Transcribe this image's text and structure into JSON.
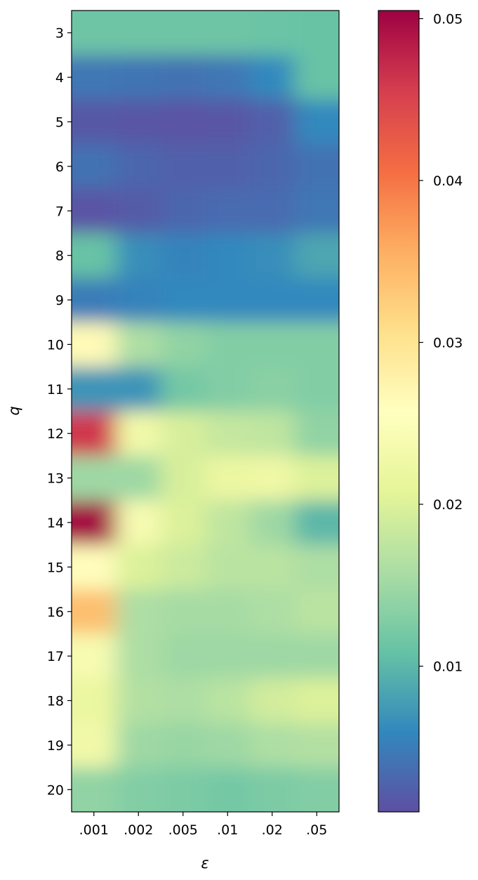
{
  "chart_data": {
    "type": "heatmap",
    "title": "",
    "xlabel": "ε",
    "ylabel": "q",
    "x_categories": [
      ".001",
      ".002",
      ".005",
      ".01",
      ".02",
      ".05"
    ],
    "y_categories": [
      "3",
      "4",
      "5",
      "6",
      "7",
      "8",
      "9",
      "10",
      "11",
      "12",
      "13",
      "14",
      "15",
      "16",
      "17",
      "18",
      "19",
      "20"
    ],
    "z": [
      [
        0.0115,
        0.0115,
        0.0115,
        0.0115,
        0.0112,
        0.011
      ],
      [
        0.0045,
        0.0043,
        0.004,
        0.0045,
        0.006,
        0.011
      ],
      [
        0.0018,
        0.0016,
        0.0014,
        0.0016,
        0.0025,
        0.006
      ],
      [
        0.004,
        0.003,
        0.0025,
        0.0025,
        0.003,
        0.004
      ],
      [
        0.0015,
        0.002,
        0.003,
        0.0035,
        0.0035,
        0.0045
      ],
      [
        0.011,
        0.0065,
        0.0055,
        0.006,
        0.0065,
        0.0085
      ],
      [
        0.005,
        0.0055,
        0.006,
        0.006,
        0.006,
        0.006
      ],
      [
        0.0265,
        0.016,
        0.014,
        0.013,
        0.013,
        0.013
      ],
      [
        0.007,
        0.007,
        0.012,
        0.013,
        0.0135,
        0.013
      ],
      [
        0.046,
        0.023,
        0.0195,
        0.018,
        0.0175,
        0.014
      ],
      [
        0.015,
        0.015,
        0.0195,
        0.022,
        0.0225,
        0.02
      ],
      [
        0.05,
        0.024,
        0.02,
        0.0175,
        0.015,
        0.01
      ],
      [
        0.026,
        0.02,
        0.0185,
        0.017,
        0.017,
        0.016
      ],
      [
        0.034,
        0.016,
        0.0155,
        0.0155,
        0.016,
        0.017
      ],
      [
        0.024,
        0.016,
        0.015,
        0.015,
        0.015,
        0.015
      ],
      [
        0.022,
        0.0165,
        0.016,
        0.017,
        0.019,
        0.02
      ],
      [
        0.023,
        0.015,
        0.0145,
        0.015,
        0.016,
        0.0165
      ],
      [
        0.014,
        0.013,
        0.0125,
        0.012,
        0.0125,
        0.013
      ]
    ],
    "colorbar": {
      "colormap": "Spectral_r",
      "range": [
        0.001,
        0.0505
      ],
      "ticks": [
        0.01,
        0.02,
        0.03,
        0.04,
        0.05
      ],
      "tick_labels": [
        "0.01",
        "0.02",
        "0.03",
        "0.04",
        "0.05"
      ]
    },
    "grid": false
  }
}
